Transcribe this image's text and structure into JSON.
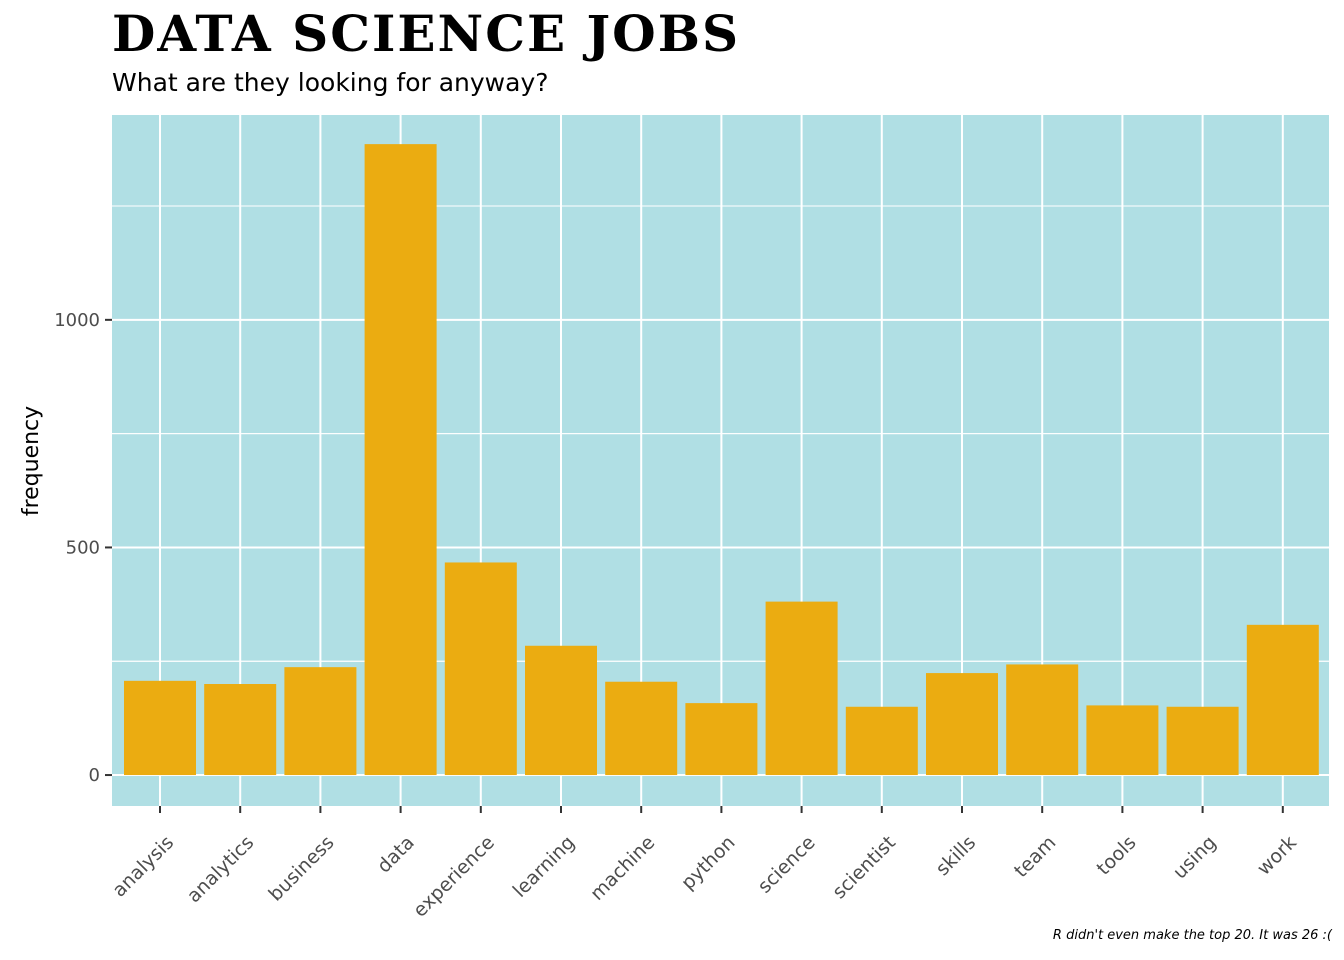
{
  "chart_data": {
    "type": "bar",
    "title": "Data Science Jobs",
    "subtitle": "What are they looking for anyway?",
    "caption": "R didn't even make the top 20. It was 26 :(",
    "xlabel": "",
    "ylabel": "frequency",
    "categories": [
      "analysis",
      "analytics",
      "business",
      "data",
      "experience",
      "learning",
      "machine",
      "python",
      "science",
      "scientist",
      "skills",
      "team",
      "tools",
      "using",
      "work"
    ],
    "values": [
      207,
      200,
      237,
      1386,
      467,
      284,
      205,
      158,
      381,
      150,
      224,
      243,
      153,
      150,
      330
    ],
    "ylim": [
      -68,
      1450
    ],
    "yticks": [
      0,
      500,
      1000
    ],
    "grid": true,
    "legend": "none",
    "colors": {
      "bar": "#EBAC11",
      "panel": "#B0DFE4",
      "grid": "#ffffff",
      "tick_text": "#4d4d4d",
      "axis_tick": "#333333"
    }
  }
}
